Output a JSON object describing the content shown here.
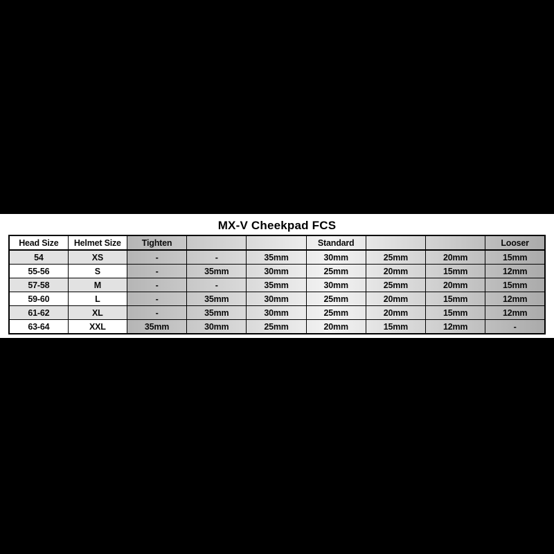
{
  "chart_data": {
    "type": "table",
    "title": "MX-V Cheekpad FCS",
    "columns": [
      "Head Size",
      "Helmet Size",
      "Tighten",
      "",
      "",
      "Standard",
      "",
      "",
      "Looser"
    ],
    "rows": [
      [
        "54",
        "XS",
        "-",
        "-",
        "35mm",
        "30mm",
        "25mm",
        "20mm",
        "15mm"
      ],
      [
        "55-56",
        "S",
        "-",
        "35mm",
        "30mm",
        "25mm",
        "20mm",
        "15mm",
        "12mm"
      ],
      [
        "57-58",
        "M",
        "-",
        "-",
        "35mm",
        "30mm",
        "25mm",
        "20mm",
        "15mm"
      ],
      [
        "59-60",
        "L",
        "-",
        "35mm",
        "30mm",
        "25mm",
        "20mm",
        "15mm",
        "12mm"
      ],
      [
        "61-62",
        "XL",
        "-",
        "35mm",
        "30mm",
        "25mm",
        "20mm",
        "15mm",
        "12mm"
      ],
      [
        "63-64",
        "XXL",
        "35mm",
        "30mm",
        "25mm",
        "20mm",
        "15mm",
        "12mm",
        "-"
      ]
    ],
    "layout": {
      "legend_position": "none",
      "grid": "full black cell borders",
      "shading": "horizontal gradient per row: dark at Tighten, lightest at Standard, dark at Looser",
      "letterboxed": "solid black bars above and below white table band"
    }
  },
  "colors": {
    "letterbox_bar": "#000000",
    "panel_background": "#ffffff",
    "grid_line": "#000000",
    "text": "#0a0a0a",
    "label_row_alt": "#e2e2e2",
    "gradient_left_dark": "#b5b5b5",
    "gradient_center_light": "#f3f3f3",
    "gradient_right_dark": "#aaaaaa"
  }
}
